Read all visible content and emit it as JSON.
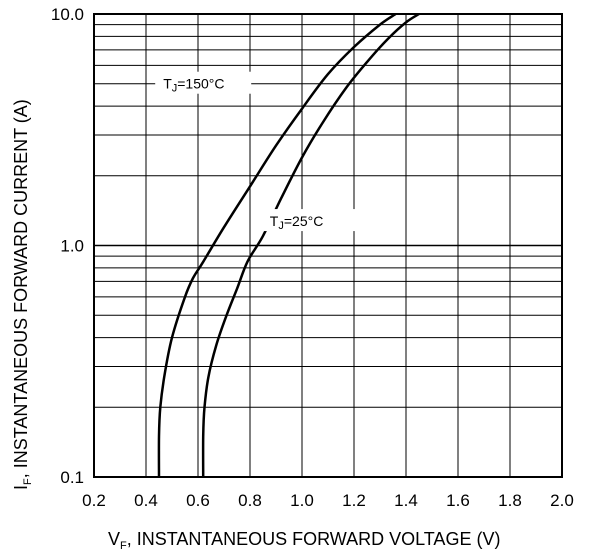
{
  "chart_data": {
    "type": "line",
    "xlabel": "V F, INSTANTANEOUS FORWARD VOLTAGE (V)",
    "xlabel_main": "V",
    "xlabel_sub": "F",
    "xlabel_rest": ", INSTANTANEOUS FORWARD VOLTAGE (V)",
    "ylabel": "IF, INSTANTANEOUS FORWARD CURRENT (A)",
    "ylabel_main": "I",
    "ylabel_sub": "F",
    "ylabel_rest": ", INSTANTANEOUS FORWARD CURRENT (A)",
    "xlim": [
      0.2,
      2.0
    ],
    "ylim": [
      0.1,
      10.0
    ],
    "yscale": "log",
    "grid": true,
    "x_ticks": [
      "0.2",
      "0.4",
      "0.6",
      "0.8",
      "1.0",
      "1.2",
      "1.4",
      "1.6",
      "1.8",
      "2.0"
    ],
    "x_tick_values": [
      0.2,
      0.4,
      0.6,
      0.8,
      1.0,
      1.2,
      1.4,
      1.6,
      1.8,
      2.0
    ],
    "y_ticks": [
      "0.1",
      "1.0",
      "10.0"
    ],
    "y_tick_values": [
      0.1,
      1.0,
      10.0
    ],
    "series": [
      {
        "name": "TJ=150°C",
        "label_main": "T",
        "label_sub": "J",
        "label_rest": "=150°C",
        "label_at": [
          0.62,
          4.9
        ],
        "x": [
          0.45,
          0.45,
          0.455,
          0.47,
          0.5,
          0.55,
          0.58,
          0.62,
          0.7,
          0.8,
          0.9,
          1.0,
          1.1,
          1.2,
          1.3,
          1.36
        ],
        "y": [
          0.1,
          0.15,
          0.2,
          0.27,
          0.4,
          0.6,
          0.72,
          0.85,
          1.2,
          1.8,
          2.7,
          3.9,
          5.5,
          7.2,
          9.0,
          10.0
        ]
      },
      {
        "name": "TJ=25°C",
        "label_main": "T",
        "label_sub": "J",
        "label_rest": "=25°C",
        "label_at": [
          1.03,
          1.25
        ],
        "x": [
          0.62,
          0.62,
          0.625,
          0.64,
          0.67,
          0.71,
          0.75,
          0.79,
          0.85,
          0.92,
          1.0,
          1.08,
          1.17,
          1.25,
          1.33,
          1.4,
          1.45
        ],
        "y": [
          0.1,
          0.15,
          0.2,
          0.27,
          0.37,
          0.5,
          0.65,
          0.85,
          1.1,
          1.6,
          2.4,
          3.4,
          4.8,
          6.2,
          7.8,
          9.2,
          10.0
        ]
      }
    ]
  }
}
